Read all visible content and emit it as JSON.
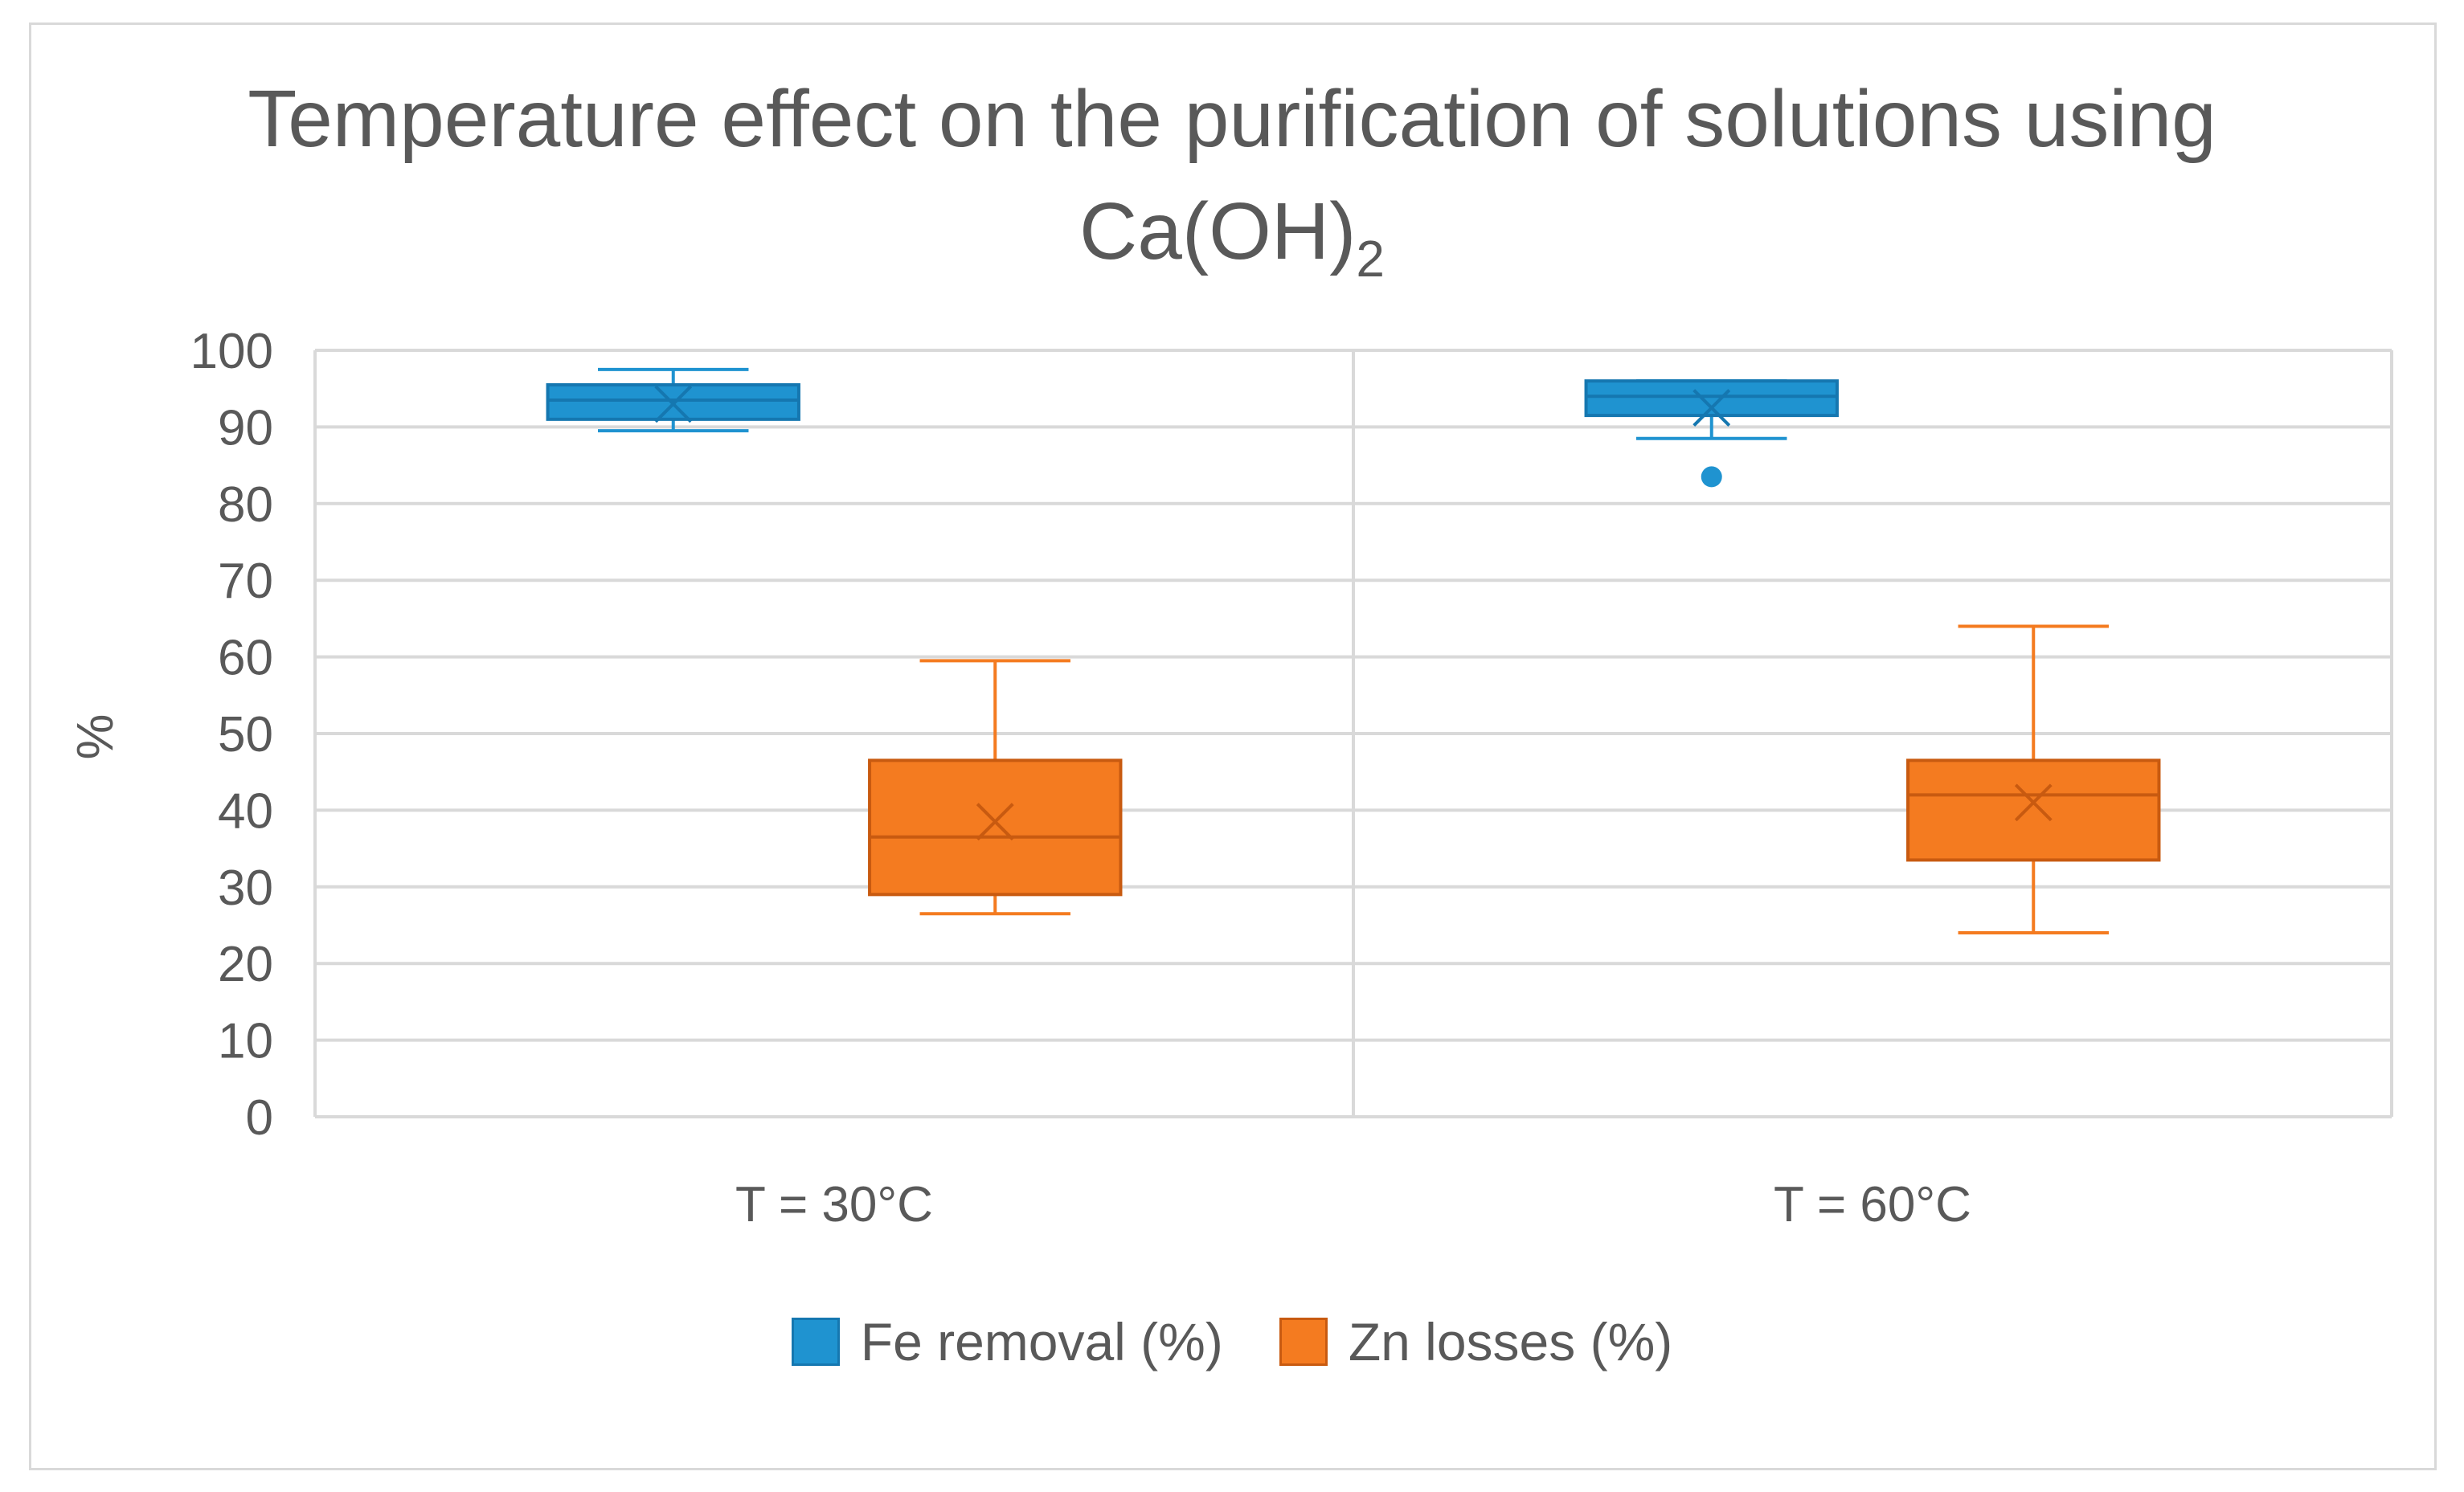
{
  "chart_data": {
    "type": "box",
    "title_line1": "Temperature effect on the purification of solutions using",
    "title_line2_main": "Ca(OH)",
    "title_line2_sub": "2",
    "ylabel": "%",
    "xlabel": "",
    "ylim": [
      0,
      100
    ],
    "yticks": [
      "0",
      "10",
      "20",
      "30",
      "40",
      "50",
      "60",
      "70",
      "80",
      "90",
      "100"
    ],
    "categories": [
      "T = 30°C",
      "T = 60°C"
    ],
    "grid": true,
    "legend_position": "bottom",
    "series": [
      {
        "name": "Fe removal (%)",
        "color": "#1f93d0",
        "edge": "#1577b0",
        "boxes": [
          {
            "min": 89.5,
            "q1": 91,
            "median": 93.5,
            "q3": 95.5,
            "max": 97.5,
            "mean": 93,
            "outliers": []
          },
          {
            "min": 88.5,
            "q1": 91.5,
            "median": 94,
            "q3": 96,
            "max": 96,
            "mean": 92.5,
            "outliers": [
              83.5
            ]
          }
        ]
      },
      {
        "name": "Zn losses (%)",
        "color": "#f47b20",
        "edge": "#c85a10",
        "boxes": [
          {
            "min": 26.5,
            "q1": 29,
            "median": 36.5,
            "q3": 46.5,
            "max": 59.5,
            "mean": 38.5,
            "outliers": []
          },
          {
            "min": 24,
            "q1": 33.5,
            "median": 42,
            "q3": 46.5,
            "max": 64,
            "mean": 41,
            "outliers": []
          }
        ]
      }
    ]
  }
}
